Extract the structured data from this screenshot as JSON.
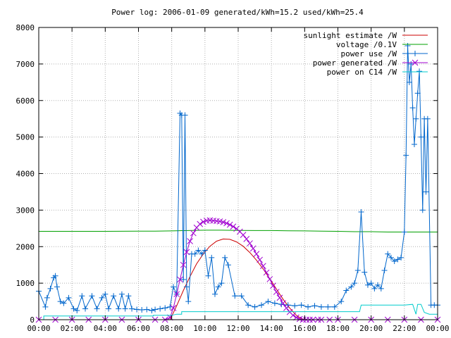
{
  "chart_data": {
    "type": "line",
    "title": "Power log: 2006-01-09 generated/kWh=15.2 used/kWh=25.4",
    "xlabel": "",
    "ylabel": "",
    "xlim": [
      0,
      24
    ],
    "ylim": [
      0,
      8000
    ],
    "grid": true,
    "legend_position": "top-right",
    "x_ticks": [
      {
        "value": 0,
        "label": "00:00"
      },
      {
        "value": 2,
        "label": "02:00"
      },
      {
        "value": 4,
        "label": "04:00"
      },
      {
        "value": 6,
        "label": "06:00"
      },
      {
        "value": 8,
        "label": "08:00"
      },
      {
        "value": 10,
        "label": "10:00"
      },
      {
        "value": 12,
        "label": "12:00"
      },
      {
        "value": 14,
        "label": "14:00"
      },
      {
        "value": 16,
        "label": "16:00"
      },
      {
        "value": 18,
        "label": "18:00"
      },
      {
        "value": 20,
        "label": "20:00"
      },
      {
        "value": 22,
        "label": "22:00"
      },
      {
        "value": 24,
        "label": "00:00"
      }
    ],
    "y_ticks": [
      {
        "value": 0,
        "label": "0"
      },
      {
        "value": 1000,
        "label": "1000"
      },
      {
        "value": 2000,
        "label": "2000"
      },
      {
        "value": 3000,
        "label": "3000"
      },
      {
        "value": 4000,
        "label": "4000"
      },
      {
        "value": 5000,
        "label": "5000"
      },
      {
        "value": 6000,
        "label": "6000"
      },
      {
        "value": 7000,
        "label": "7000"
      },
      {
        "value": 8000,
        "label": "8000"
      }
    ],
    "series": [
      {
        "name": "sunlight estimate /W",
        "color": "#cc0000",
        "marker": "none",
        "x": [
          0,
          7.9,
          8.3,
          8.7,
          9.1,
          9.5,
          9.9,
          10.3,
          10.7,
          11.1,
          11.5,
          11.9,
          12.3,
          12.7,
          13.1,
          13.5,
          13.9,
          14.3,
          14.7,
          15.1,
          15.5,
          15.8,
          16.0,
          24
        ],
        "y": [
          0,
          0,
          380,
          800,
          1180,
          1530,
          1800,
          2010,
          2150,
          2210,
          2200,
          2130,
          2010,
          1840,
          1630,
          1390,
          1120,
          840,
          560,
          320,
          120,
          30,
          0,
          0
        ]
      },
      {
        "name": "voltage /0.1V",
        "color": "#00a000",
        "marker": "none",
        "x": [
          0,
          2,
          4,
          6,
          7,
          8,
          9,
          10,
          11,
          12,
          13,
          14,
          15,
          16,
          17,
          18,
          19,
          20,
          21,
          22,
          23,
          24
        ],
        "y": [
          2420,
          2420,
          2420,
          2425,
          2425,
          2430,
          2440,
          2450,
          2450,
          2445,
          2440,
          2440,
          2435,
          2430,
          2425,
          2420,
          2410,
          2410,
          2400,
          2400,
          2400,
          2400
        ]
      },
      {
        "name": "power use /W",
        "color": "#0066cc",
        "marker": "plus",
        "x": [
          0,
          0.4,
          0.5,
          0.7,
          0.9,
          1.0,
          1.1,
          1.3,
          1.5,
          1.8,
          2.1,
          2.3,
          2.6,
          2.8,
          3.2,
          3.5,
          3.8,
          4.0,
          4.2,
          4.5,
          4.8,
          5.0,
          5.2,
          5.4,
          5.6,
          5.9,
          6.2,
          6.5,
          6.8,
          7.0,
          7.3,
          7.6,
          7.9,
          8.1,
          8.3,
          8.5,
          8.6,
          8.7,
          8.8,
          8.9,
          9.0,
          9.2,
          9.4,
          9.6,
          9.8,
          10.0,
          10.2,
          10.4,
          10.6,
          10.8,
          11.0,
          11.2,
          11.4,
          11.8,
          12.2,
          12.6,
          13.0,
          13.4,
          13.8,
          14.2,
          14.6,
          15.0,
          15.4,
          15.8,
          16.2,
          16.6,
          17.0,
          17.4,
          17.8,
          18.2,
          18.5,
          18.8,
          19.0,
          19.2,
          19.4,
          19.6,
          19.8,
          20.0,
          20.2,
          20.4,
          20.6,
          20.8,
          21.0,
          21.2,
          21.4,
          21.6,
          21.8,
          22.0,
          22.1,
          22.2,
          22.3,
          22.4,
          22.5,
          22.6,
          22.7,
          22.8,
          22.9,
          23.0,
          23.1,
          23.2,
          23.3,
          23.4,
          23.6,
          23.8,
          24.0
        ],
        "y": [
          780,
          350,
          600,
          850,
          1150,
          1200,
          900,
          500,
          450,
          600,
          300,
          250,
          650,
          300,
          650,
          300,
          600,
          700,
          300,
          650,
          300,
          700,
          300,
          650,
          300,
          280,
          270,
          280,
          250,
          280,
          300,
          320,
          350,
          900,
          700,
          5650,
          5600,
          1100,
          5600,
          900,
          500,
          1800,
          1800,
          1900,
          1800,
          1900,
          1200,
          1700,
          700,
          900,
          1000,
          1700,
          1500,
          650,
          650,
          400,
          350,
          400,
          500,
          450,
          420,
          400,
          380,
          400,
          350,
          380,
          350,
          350,
          350,
          500,
          800,
          900,
          1000,
          1350,
          2950,
          1300,
          950,
          1000,
          850,
          950,
          850,
          1350,
          1800,
          1700,
          1600,
          1650,
          1700,
          2400,
          4500,
          7500,
          6500,
          7000,
          5800,
          4800,
          5500,
          6200,
          6800,
          5000,
          3000,
          5500,
          3500,
          5500,
          400,
          400,
          400
        ]
      },
      {
        "name": "power generated /W",
        "color": "#a000d0",
        "marker": "cross",
        "x": [
          0,
          1,
          2,
          3,
          4,
          5,
          6,
          7,
          7.6,
          7.9,
          8.1,
          8.3,
          8.5,
          8.7,
          8.9,
          9.1,
          9.3,
          9.5,
          9.7,
          9.9,
          10.1,
          10.3,
          10.5,
          10.7,
          10.9,
          11.1,
          11.3,
          11.5,
          11.7,
          11.9,
          12.1,
          12.3,
          12.5,
          12.7,
          12.9,
          13.1,
          13.3,
          13.5,
          13.7,
          13.9,
          14.1,
          14.3,
          14.5,
          14.7,
          14.9,
          15.1,
          15.3,
          15.5,
          15.7,
          15.9,
          16.1,
          16.3,
          16.5,
          16.8,
          17.0,
          17.5,
          18,
          19,
          20,
          21,
          22,
          23,
          24
        ],
        "y": [
          0,
          0,
          0,
          0,
          0,
          0,
          0,
          0,
          0,
          60,
          320,
          700,
          1100,
          1500,
          1850,
          2150,
          2370,
          2520,
          2620,
          2680,
          2710,
          2720,
          2710,
          2700,
          2690,
          2670,
          2640,
          2600,
          2550,
          2490,
          2410,
          2320,
          2210,
          2090,
          1950,
          1800,
          1640,
          1470,
          1290,
          1110,
          930,
          760,
          600,
          450,
          320,
          210,
          120,
          60,
          20,
          0,
          0,
          0,
          0,
          0,
          0,
          0,
          0,
          0,
          0,
          0,
          0,
          0,
          0
        ]
      },
      {
        "name": "power on C14 /W",
        "color": "#00cccc",
        "marker": "none",
        "x": [
          0,
          0.3,
          0.3,
          6.9,
          6.9,
          8.0,
          8.3,
          8.6,
          8.6,
          19.3,
          19.4,
          22.0,
          22.5,
          22.7,
          22.8,
          23.0,
          23.2,
          23.5,
          23.7,
          24.0
        ],
        "y": [
          0,
          0,
          100,
          100,
          120,
          120,
          150,
          150,
          220,
          220,
          400,
          400,
          420,
          150,
          420,
          420,
          200,
          150,
          150,
          150
        ]
      }
    ]
  }
}
